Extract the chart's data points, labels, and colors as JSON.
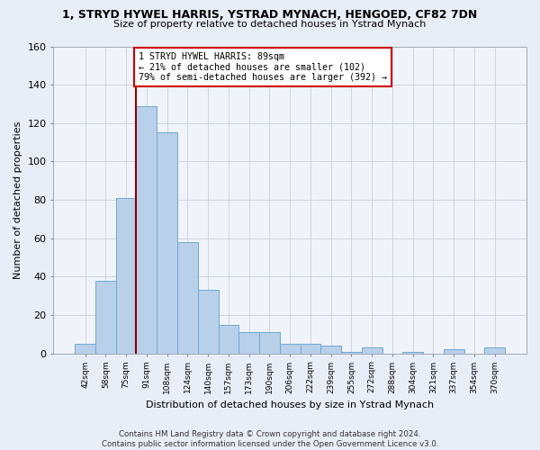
{
  "title": "1, STRYD HYWEL HARRIS, YSTRAD MYNACH, HENGOED, CF82 7DN",
  "subtitle": "Size of property relative to detached houses in Ystrad Mynach",
  "xlabel": "Distribution of detached houses by size in Ystrad Mynach",
  "ylabel": "Number of detached properties",
  "categories": [
    "42sqm",
    "58sqm",
    "75sqm",
    "91sqm",
    "108sqm",
    "124sqm",
    "140sqm",
    "157sqm",
    "173sqm",
    "190sqm",
    "206sqm",
    "222sqm",
    "239sqm",
    "255sqm",
    "272sqm",
    "288sqm",
    "304sqm",
    "321sqm",
    "337sqm",
    "354sqm",
    "370sqm"
  ],
  "values": [
    5,
    38,
    81,
    129,
    115,
    58,
    33,
    15,
    11,
    11,
    5,
    5,
    4,
    1,
    3,
    0,
    1,
    0,
    2,
    0,
    3
  ],
  "bar_color": "#b8d0ea",
  "bar_edge_color": "#6fa8d4",
  "vline_color": "#8b0000",
  "annotation_text": "1 STRYD HYWEL HARRIS: 89sqm\n← 21% of detached houses are smaller (102)\n79% of semi-detached houses are larger (392) →",
  "annotation_box_color": "white",
  "annotation_box_edge_color": "#cc0000",
  "ylim": [
    0,
    160
  ],
  "yticks": [
    0,
    20,
    40,
    60,
    80,
    100,
    120,
    140,
    160
  ],
  "footer": "Contains HM Land Registry data © Crown copyright and database right 2024.\nContains public sector information licensed under the Open Government Licence v3.0.",
  "bg_color": "#e8eef7",
  "plot_bg_color": "#f0f4fa",
  "grid_color": "#c8d0dc"
}
